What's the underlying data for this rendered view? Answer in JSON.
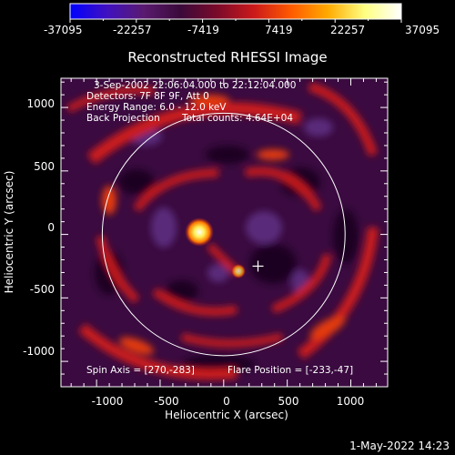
{
  "colorbar": {
    "min_label": "-37095",
    "tick_labels": [
      "-37095",
      "-22257",
      "-7419",
      "7419",
      "22257",
      "37095"
    ],
    "stops": [
      "#0000ff",
      "#4010c0",
      "#5a1a70",
      "#3a0a3a",
      "#7a0a2a",
      "#cc1a1a",
      "#ff5a00",
      "#ffaa00",
      "#ffff80",
      "#ffffff"
    ]
  },
  "plot": {
    "title": "Reconstructed RHESSI Image",
    "x_axis_label": "Heliocentric X (arcsec)",
    "y_axis_label": "Heliocentric Y (arcsec)",
    "x_tick_labels": [
      "-1000",
      "-500",
      "0",
      "500",
      "1000"
    ],
    "y_tick_labels": [
      "1000",
      "500",
      "0",
      "-500",
      "-1000"
    ],
    "x_range": [
      -1280,
      1290
    ],
    "y_range": [
      -1200,
      1230
    ],
    "solar_disk_radius_arcsec": 955,
    "flare_marker": [
      270,
      -250
    ],
    "bright_source": [
      -230,
      -40
    ]
  },
  "info": {
    "line1": "3-Sep-2002 22:06:04.000 to 22:12:04.000",
    "line2": "Detectors: 7F 8F 9F, Att 0",
    "line3": "Energy Range: 6.0 - 12.0 keV",
    "line4_left": "Back Projection",
    "line4_right": "Total counts: 4.64E+04",
    "spin_axis": "Spin Axis = [270,-283]",
    "flare_position": "Flare Position = [-233,-47]"
  },
  "footer": {
    "timestamp": "1-May-2022 14:23"
  }
}
